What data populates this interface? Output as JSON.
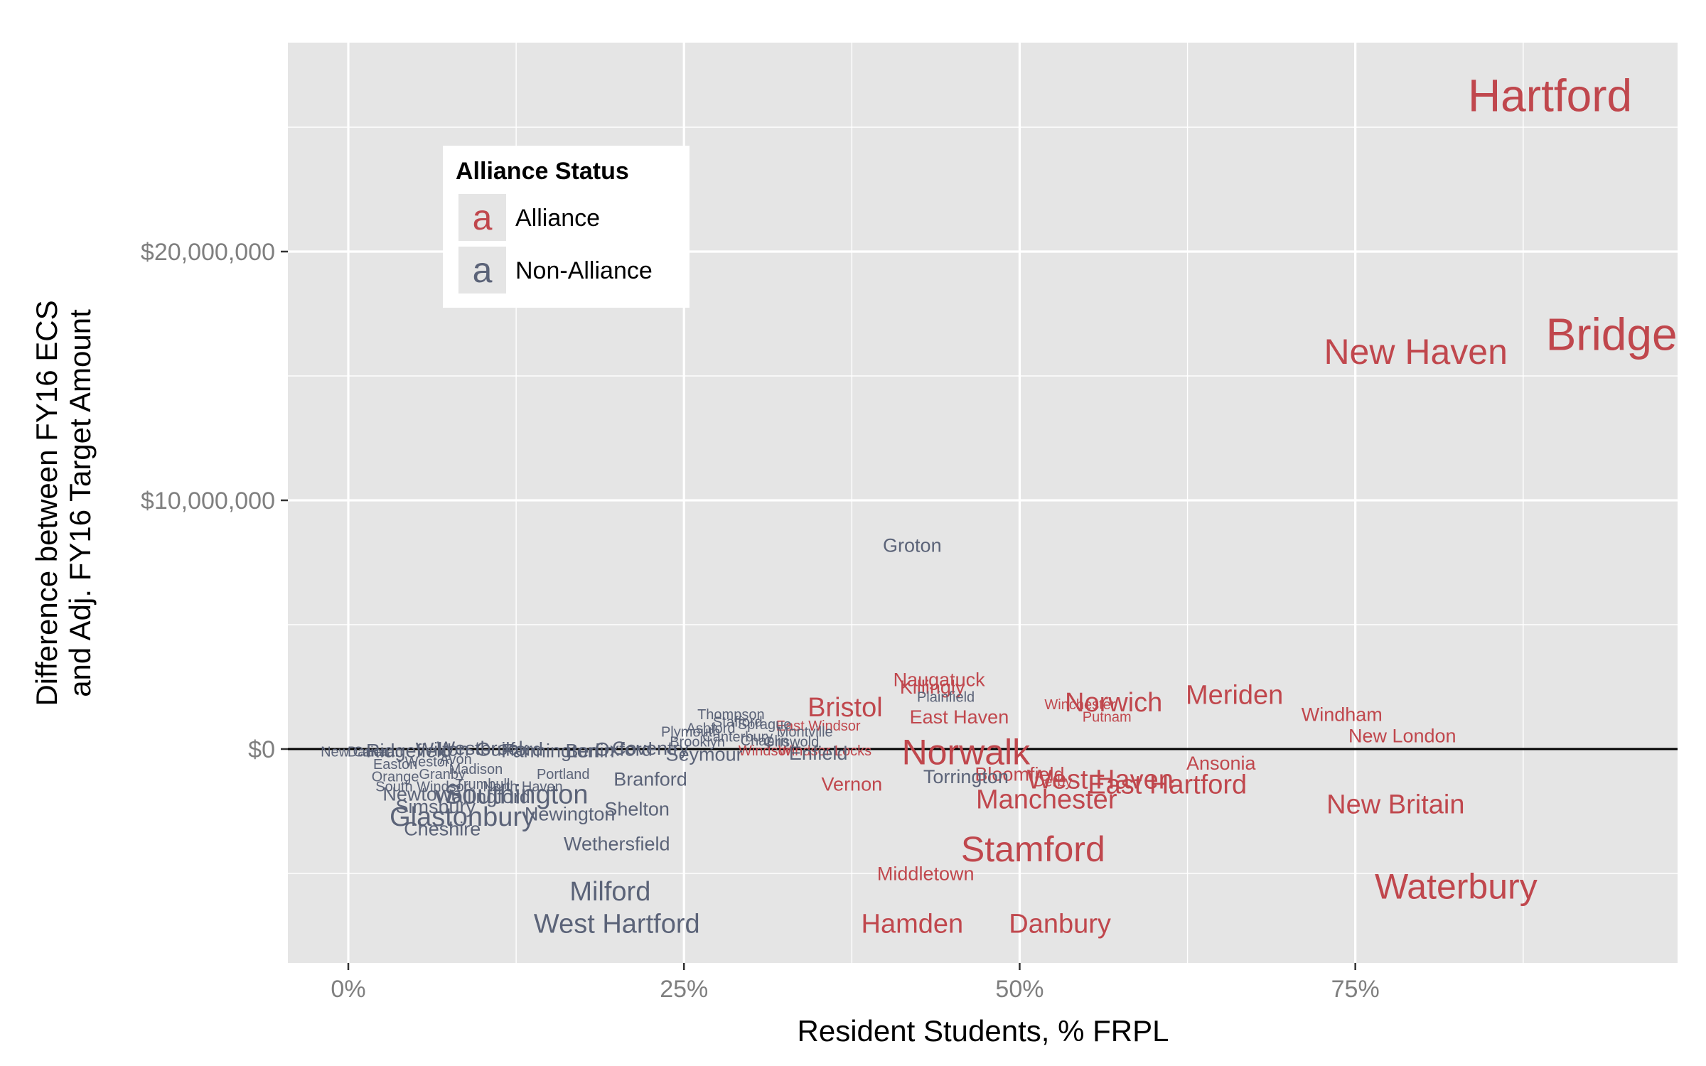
{
  "chart_data": {
    "type": "scatter",
    "title": "",
    "xlabel": "Resident Students, % FRPL",
    "ylabel_lines": [
      "Difference between FY16 ECS",
      "and Adj. FY16 Target Amount"
    ],
    "xlim": [
      -4.5,
      99
    ],
    "ylim": [
      -8600000,
      28400000
    ],
    "x_ticks": [
      {
        "value": 0,
        "label": "0%"
      },
      {
        "value": 25,
        "label": "25%"
      },
      {
        "value": 50,
        "label": "50%"
      },
      {
        "value": 75,
        "label": "75%"
      }
    ],
    "y_ticks": [
      {
        "value": 0,
        "label": "$0"
      },
      {
        "value": 10000000,
        "label": "$10,000,000"
      },
      {
        "value": 20000000,
        "label": "$20,000,000"
      }
    ],
    "reference_line": 0,
    "grid": true,
    "legend": {
      "title": "Alliance Status",
      "position": "top-left",
      "key_glyph": "a",
      "entries": [
        {
          "label": "Alliance",
          "color": "#c0474d"
        },
        {
          "label": "Non-Alliance",
          "color": "#5b6378"
        }
      ]
    },
    "colors": {
      "alliance": "#c0474d",
      "non_alliance": "#5b6378",
      "panel": "#e5e5e5",
      "grid": "#ffffff"
    },
    "points": [
      {
        "label": "Hartford",
        "x": 89.5,
        "y": 26300000,
        "group": "alliance",
        "size": 5
      },
      {
        "label": "Bridgeport",
        "x": 97,
        "y": 16700000,
        "group": "alliance",
        "size": 5
      },
      {
        "label": "New Haven",
        "x": 79.5,
        "y": 16000000,
        "group": "alliance",
        "size": 4
      },
      {
        "label": "Waterbury",
        "x": 82.5,
        "y": -5500000,
        "group": "alliance",
        "size": 4
      },
      {
        "label": "New Britain",
        "x": 78,
        "y": -2200000,
        "group": "alliance",
        "size": 3
      },
      {
        "label": "Stamford",
        "x": 51,
        "y": -4000000,
        "group": "alliance",
        "size": 4
      },
      {
        "label": "Danbury",
        "x": 53,
        "y": -7000000,
        "group": "alliance",
        "size": 3
      },
      {
        "label": "Meriden",
        "x": 66,
        "y": 2200000,
        "group": "alliance",
        "size": 3
      },
      {
        "label": "Windham",
        "x": 74,
        "y": 1400000,
        "group": "alliance",
        "size": 2
      },
      {
        "label": "New London",
        "x": 78.5,
        "y": 550000,
        "group": "alliance",
        "size": 2
      },
      {
        "label": "Ansonia",
        "x": 65,
        "y": -550000,
        "group": "alliance",
        "size": 2
      },
      {
        "label": "Norwich",
        "x": 57,
        "y": 1900000,
        "group": "alliance",
        "size": 3
      },
      {
        "label": "Putnam",
        "x": 56.5,
        "y": 1300000,
        "group": "alliance",
        "size": 1
      },
      {
        "label": "Winchester",
        "x": 54.5,
        "y": 1800000,
        "group": "alliance",
        "size": 1
      },
      {
        "label": "East Hartford",
        "x": 61,
        "y": -1400000,
        "group": "alliance",
        "size": 3
      },
      {
        "label": "West Haven",
        "x": 56,
        "y": -1200000,
        "group": "alliance",
        "size": 3
      },
      {
        "label": "Manchester",
        "x": 52,
        "y": -2000000,
        "group": "alliance",
        "size": 3
      },
      {
        "label": "Norwalk",
        "x": 46,
        "y": -100000,
        "group": "alliance",
        "size": 4
      },
      {
        "label": "Bloomfield",
        "x": 50,
        "y": -1000000,
        "group": "alliance",
        "size": 2
      },
      {
        "label": "Derby",
        "x": 52.5,
        "y": -1300000,
        "group": "alliance",
        "size": 1
      },
      {
        "label": "Naugatuck",
        "x": 44,
        "y": 2800000,
        "group": "alliance",
        "size": 2
      },
      {
        "label": "Killingly",
        "x": 43.5,
        "y": 2500000,
        "group": "alliance",
        "size": 2
      },
      {
        "label": "East Haven",
        "x": 45.5,
        "y": 1300000,
        "group": "alliance",
        "size": 2
      },
      {
        "label": "Bristol",
        "x": 37,
        "y": 1700000,
        "group": "alliance",
        "size": 3
      },
      {
        "label": "Middletown",
        "x": 43,
        "y": -5000000,
        "group": "alliance",
        "size": 2
      },
      {
        "label": "Hamden",
        "x": 42,
        "y": -7000000,
        "group": "alliance",
        "size": 3
      },
      {
        "label": "Vernon",
        "x": 37.5,
        "y": -1400000,
        "group": "alliance",
        "size": 2
      },
      {
        "label": "East Windsor",
        "x": 35,
        "y": 950000,
        "group": "alliance",
        "size": 1
      },
      {
        "label": "Windsor Locks",
        "x": 35.5,
        "y": -50000,
        "group": "alliance",
        "size": 1
      },
      {
        "label": "Windsor",
        "x": 31,
        "y": -50000,
        "group": "alliance",
        "size": 1
      },
      {
        "label": "Groton",
        "x": 42,
        "y": 8200000,
        "group": "non_alliance",
        "size": 2
      },
      {
        "label": "Plainfield",
        "x": 44.5,
        "y": 2100000,
        "group": "non_alliance",
        "size": 1
      },
      {
        "label": "Torrington",
        "x": 46,
        "y": -1100000,
        "group": "non_alliance",
        "size": 2
      },
      {
        "label": "Thompson",
        "x": 28.5,
        "y": 1400000,
        "group": "non_alliance",
        "size": 1
      },
      {
        "label": "Stafford",
        "x": 29,
        "y": 1100000,
        "group": "non_alliance",
        "size": 1
      },
      {
        "label": "Sprague",
        "x": 31,
        "y": 1000000,
        "group": "non_alliance",
        "size": 1
      },
      {
        "label": "Ashford",
        "x": 27,
        "y": 850000,
        "group": "non_alliance",
        "size": 1
      },
      {
        "label": "Plymouth",
        "x": 25.5,
        "y": 700000,
        "group": "non_alliance",
        "size": 1
      },
      {
        "label": "Montville",
        "x": 34,
        "y": 700000,
        "group": "non_alliance",
        "size": 1
      },
      {
        "label": "Canterbury",
        "x": 29,
        "y": 500000,
        "group": "non_alliance",
        "size": 1
      },
      {
        "label": "Chaplin",
        "x": 31,
        "y": 350000,
        "group": "non_alliance",
        "size": 1
      },
      {
        "label": "Brooklyn",
        "x": 26,
        "y": 300000,
        "group": "non_alliance",
        "size": 1
      },
      {
        "label": "Griswold",
        "x": 33,
        "y": 300000,
        "group": "non_alliance",
        "size": 1
      },
      {
        "label": "Seymour",
        "x": 26.5,
        "y": -200000,
        "group": "non_alliance",
        "size": 2
      },
      {
        "label": "Enfield",
        "x": 35,
        "y": -150000,
        "group": "non_alliance",
        "size": 2
      },
      {
        "label": "Portland",
        "x": 16,
        "y": -1000000,
        "group": "non_alliance",
        "size": 1
      },
      {
        "label": "Branford",
        "x": 22.5,
        "y": -1200000,
        "group": "non_alliance",
        "size": 2
      },
      {
        "label": "Shelton",
        "x": 21.5,
        "y": -2400000,
        "group": "non_alliance",
        "size": 2
      },
      {
        "label": "Newington",
        "x": 16.5,
        "y": -2600000,
        "group": "non_alliance",
        "size": 2
      },
      {
        "label": "Wethersfield",
        "x": 20,
        "y": -3800000,
        "group": "non_alliance",
        "size": 2
      },
      {
        "label": "Milford",
        "x": 19.5,
        "y": -5700000,
        "group": "non_alliance",
        "size": 3
      },
      {
        "label": "West Hartford",
        "x": 20,
        "y": -7000000,
        "group": "non_alliance",
        "size": 3
      },
      {
        "label": "Southington",
        "x": 12.5,
        "y": -1800000,
        "group": "non_alliance",
        "size": 3
      },
      {
        "label": "Glastonbury",
        "x": 8.5,
        "y": -2700000,
        "group": "non_alliance",
        "size": 3
      },
      {
        "label": "Cheshire",
        "x": 7,
        "y": -3200000,
        "group": "non_alliance",
        "size": 2
      },
      {
        "label": "Simsbury",
        "x": 6.5,
        "y": -2300000,
        "group": "non_alliance",
        "size": 2
      },
      {
        "label": "Wallingford",
        "x": 10,
        "y": -1900000,
        "group": "non_alliance",
        "size": 2
      },
      {
        "label": "Newtown",
        "x": 5.5,
        "y": -1800000,
        "group": "non_alliance",
        "size": 2
      },
      {
        "label": "South Windsor",
        "x": 5.5,
        "y": -1500000,
        "group": "non_alliance",
        "size": 1
      },
      {
        "label": "Trumbull",
        "x": 10,
        "y": -1400000,
        "group": "non_alliance",
        "size": 1
      },
      {
        "label": "North Haven",
        "x": 13,
        "y": -1500000,
        "group": "non_alliance",
        "size": 1
      },
      {
        "label": "Orange",
        "x": 3.5,
        "y": -1100000,
        "group": "non_alliance",
        "size": 1
      },
      {
        "label": "Granby",
        "x": 7,
        "y": -1000000,
        "group": "non_alliance",
        "size": 1
      },
      {
        "label": "Madison",
        "x": 9.5,
        "y": -800000,
        "group": "non_alliance",
        "size": 1
      },
      {
        "label": "Easton",
        "x": 3.5,
        "y": -600000,
        "group": "non_alliance",
        "size": 1
      },
      {
        "label": "Weston",
        "x": 6,
        "y": -500000,
        "group": "non_alliance",
        "size": 1
      },
      {
        "label": "Avon",
        "x": 8,
        "y": -400000,
        "group": "non_alliance",
        "size": 1
      },
      {
        "label": "New Canaan",
        "x": 1,
        "y": -100000,
        "group": "non_alliance",
        "size": 1
      },
      {
        "label": "Darien",
        "x": 1.5,
        "y": -100000,
        "group": "non_alliance",
        "size": 1
      },
      {
        "label": "Ridgefield",
        "x": 4.5,
        "y": -50000,
        "group": "non_alliance",
        "size": 2
      },
      {
        "label": "Wilton",
        "x": 7,
        "y": 0,
        "group": "non_alliance",
        "size": 2
      },
      {
        "label": "Westbrook",
        "x": 10,
        "y": 50000,
        "group": "non_alliance",
        "size": 2
      },
      {
        "label": "Guilford",
        "x": 12,
        "y": 0,
        "group": "non_alliance",
        "size": 2
      },
      {
        "label": "Farmington",
        "x": 15,
        "y": -50000,
        "group": "non_alliance",
        "size": 2
      },
      {
        "label": "Berlin",
        "x": 18,
        "y": -50000,
        "group": "non_alliance",
        "size": 2
      },
      {
        "label": "Oxford",
        "x": 20.5,
        "y": 0,
        "group": "non_alliance",
        "size": 2
      },
      {
        "label": "Coventry",
        "x": 22.5,
        "y": 50000,
        "group": "non_alliance",
        "size": 2
      }
    ]
  }
}
